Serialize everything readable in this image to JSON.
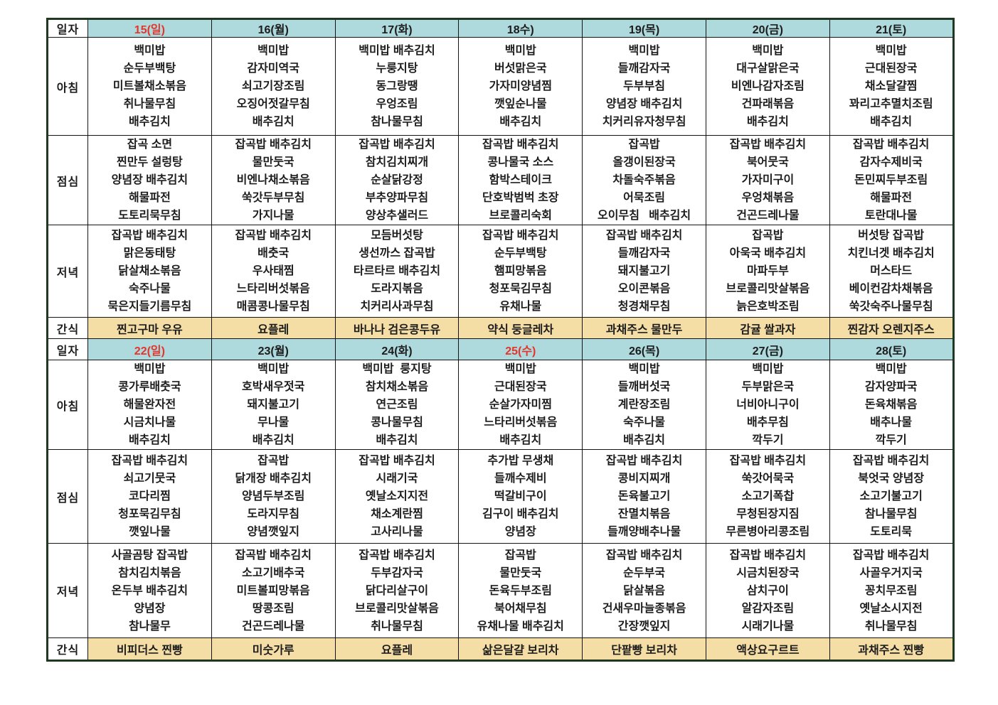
{
  "colors": {
    "header_bg": "#aed9dd",
    "snack_bg": "#f5dda6",
    "red_date": "#e3352b",
    "text": "#1c1c1c",
    "outer_border": "#1e3822"
  },
  "labels": {
    "date": "일자",
    "breakfast": "아침",
    "lunch": "점심",
    "dinner": "저녁",
    "snack": "간식"
  },
  "weeks": [
    {
      "days": [
        {
          "date": "15(일)",
          "red": true,
          "breakfast": [
            "백미밥",
            "순두부백탕",
            "미트볼채소볶음",
            "취나물무침",
            "배추김치"
          ],
          "lunch": [
            "잡곡 소면",
            "찐만두 설렁탕",
            "양념장 배추김치",
            "해물파전",
            "도토리묵무침"
          ],
          "dinner": [
            "잡곡밥 배추김치",
            "맑은동태탕",
            "닭살채소볶음",
            "숙주나물",
            "묵은지들기름무침"
          ],
          "snack": "찐고구마 우유"
        },
        {
          "date": "16(월)",
          "red": false,
          "breakfast": [
            "백미밥",
            "감자미역국",
            "쇠고기장조림",
            "오징어젓갈무침",
            "배추김치"
          ],
          "lunch": [
            "잡곡밥 배추김치",
            "물만둣국",
            "비엔나채소볶음",
            "쑥갓두부무침",
            "가지나물"
          ],
          "dinner": [
            "잡곡밥 배추김치",
            "배춧국",
            "우사태찜",
            "느타리버섯볶음",
            "매콤콩나물무침"
          ],
          "snack": "요플레"
        },
        {
          "date": "17(화)",
          "red": false,
          "breakfast": [
            "백미밥 배추김치",
            "누룽지탕",
            "동그랑땡",
            "우엉조림",
            "참나물무침"
          ],
          "lunch": [
            "잡곡밥 배추김치",
            "참치김치찌개",
            "순살닭강정",
            "부추양파무침",
            "양상추샐러드"
          ],
          "dinner": [
            "모듬버섯탕",
            "생선까스 잡곡밥",
            "타르타르 배추김치",
            "도라지볶음",
            "치커리사과무침"
          ],
          "snack": "바나나 검은콩두유"
        },
        {
          "date": "18수)",
          "red": false,
          "breakfast": [
            "백미밥",
            "버섯맑은국",
            "가자미양념찜",
            "깻잎순나물",
            "배추김치"
          ],
          "lunch": [
            "잡곡밥 배추김치",
            "콩나물국 소스",
            "함박스테이크",
            "단호박범벅 초장",
            "브로콜리숙회"
          ],
          "dinner": [
            "잡곡밥 배추김치",
            "순두부백탕",
            "햄피망볶음",
            "청포묵김무침",
            "유채나물"
          ],
          "snack": "약식 둥글레차"
        },
        {
          "date": "19(목)",
          "red": false,
          "breakfast": [
            "백미밥",
            "들깨감자국",
            "두부부침",
            "양념장 배추김치",
            "치커리유자청무침"
          ],
          "lunch": [
            "잡곡밥",
            "올갱이된장국",
            "차돌숙주볶음",
            "어묵조림",
            "오이무침   배추김치"
          ],
          "dinner": [
            "잡곡밥 배추김치",
            "들깨감자국",
            "돼지불고기",
            "오이콘볶음",
            "청경채무침"
          ],
          "snack": "과채주스 물만두"
        },
        {
          "date": "20(금)",
          "red": false,
          "breakfast": [
            "백미밥",
            "대구살맑은국",
            "비엔나감자조림",
            "건파래볶음",
            "배추김치"
          ],
          "lunch": [
            "잡곡밥 배추김치",
            "북어뭇국",
            "가자미구이",
            "우엉채볶음",
            "건곤드레나물"
          ],
          "dinner": [
            "잡곡밥",
            "아욱국 배추김치",
            "마파두부",
            "브로콜리맛살볶음",
            "늙은호박조림"
          ],
          "snack": "감귤 쌀과자"
        },
        {
          "date": "21(토)",
          "red": false,
          "breakfast": [
            "백미밥",
            "근대된장국",
            "채소달걀찜",
            "꽈리고추멸치조림",
            "배추김치"
          ],
          "lunch": [
            "잡곡밥 배추김치",
            "감자수제비국",
            "돈민찌두부조림",
            "해물파전",
            "토란대나물"
          ],
          "dinner": [
            "버섯탕 잡곡밥",
            "치킨너겟 배추김치",
            "머스타드",
            "베이컨감차채볶음",
            "쑥갓숙주나물무침"
          ],
          "snack": "찐감자 오렌지주스"
        }
      ]
    },
    {
      "days": [
        {
          "date": "22(일)",
          "red": true,
          "breakfast": [
            "백미밥",
            "콩가루배춧국",
            "해물완자전",
            "시금치나물",
            "배추김치"
          ],
          "lunch": [
            "잡곡밥 배추김치",
            "쇠고기뭇국",
            "코다리찜",
            "청포묵김무침",
            "깻잎나물"
          ],
          "dinner": [
            "사골곰탕 잡곡밥",
            "참치김치볶음",
            "온두부 배추김치",
            "양념장",
            "참나물무"
          ],
          "snack": "비피더스 찐빵"
        },
        {
          "date": "23(월)",
          "red": false,
          "breakfast": [
            "백미밥",
            "호박새우젓국",
            "돼지불고기",
            "무나물",
            "배추김치"
          ],
          "lunch": [
            "잡곡밥",
            "닭개장 배추김치",
            "양념두부조림",
            "도라지무침",
            "양념깻잎지"
          ],
          "dinner": [
            "잡곡밥 배추김치",
            "소고기배추국",
            "미트볼피망볶음",
            "땅콩조림",
            "건곤드레나물"
          ],
          "snack": "미숫가루"
        },
        {
          "date": "24(화)",
          "red": false,
          "breakfast": [
            "백미밥  룽지탕",
            "참치채소볶음",
            "연근조림",
            "콩나물무침",
            "배추김치"
          ],
          "lunch": [
            "잡곡밥 배추김치",
            "시래기국",
            "옛날소지지전",
            "채소계란찜",
            "고사리나물"
          ],
          "dinner": [
            "잡곡밥 배추김치",
            "두부감자국",
            "닭다리살구이",
            "브로콜리맛살볶음",
            "취나물무침"
          ],
          "snack": "요플레"
        },
        {
          "date": "25(수)",
          "red": true,
          "breakfast": [
            "백미밥",
            "근대된장국",
            "순살가자미찜",
            "느타리버섯볶음",
            "배추김치"
          ],
          "lunch": [
            "추가밥 무생채",
            "들깨수제비",
            "떡갈비구이",
            "김구이 배추김치",
            "양념장"
          ],
          "dinner": [
            "잡곡밥",
            "물만둣국",
            "돈육두부조림",
            "북어채무침",
            "유채나물 배추김치"
          ],
          "snack": "삶은달걀 보리차"
        },
        {
          "date": "26(목)",
          "red": false,
          "breakfast": [
            "백미밥",
            "들깨버섯국",
            "계란장조림",
            "숙주나물",
            "배추김치"
          ],
          "lunch": [
            "잡곡밥 배추김치",
            "콩비지찌개",
            "돈육불고기",
            "잔멸치볶음",
            "들깨양배추나물"
          ],
          "dinner": [
            "잡곡밥 배추김치",
            "순두부국",
            "닭살볶음",
            "건새우마늘종볶음",
            "간장깻잎지"
          ],
          "snack": "단팥빵 보리차"
        },
        {
          "date": "27(금)",
          "red": false,
          "breakfast": [
            "백미밥",
            "두부맑은국",
            "너비아니구이",
            "배추무침",
            "깍두기"
          ],
          "lunch": [
            "잡곡밥 배추김치",
            "쑥갓어묵국",
            "소고기폭찹",
            "무청된장지짐",
            "무른병아리콩조림"
          ],
          "dinner": [
            "잡곡밥 배추김치",
            "시금치된장국",
            "삼치구이",
            "알감자조림",
            "시래기나물"
          ],
          "snack": "액상요구르트"
        },
        {
          "date": "28(토)",
          "red": false,
          "breakfast": [
            "백미밥",
            "감자양파국",
            "돈육채볶음",
            "배추나물",
            "깍두기"
          ],
          "lunch": [
            "잡곡밥 배추김치",
            "북엇국 양념장",
            "소고기불고기",
            "참나물무침",
            "도토리묵"
          ],
          "dinner": [
            "잡곡밥 배추김치",
            "사골우거지국",
            "꽁치무조림",
            "옛날소시지전",
            "취나물무침"
          ],
          "snack": "과채주스 찐빵"
        }
      ]
    }
  ]
}
